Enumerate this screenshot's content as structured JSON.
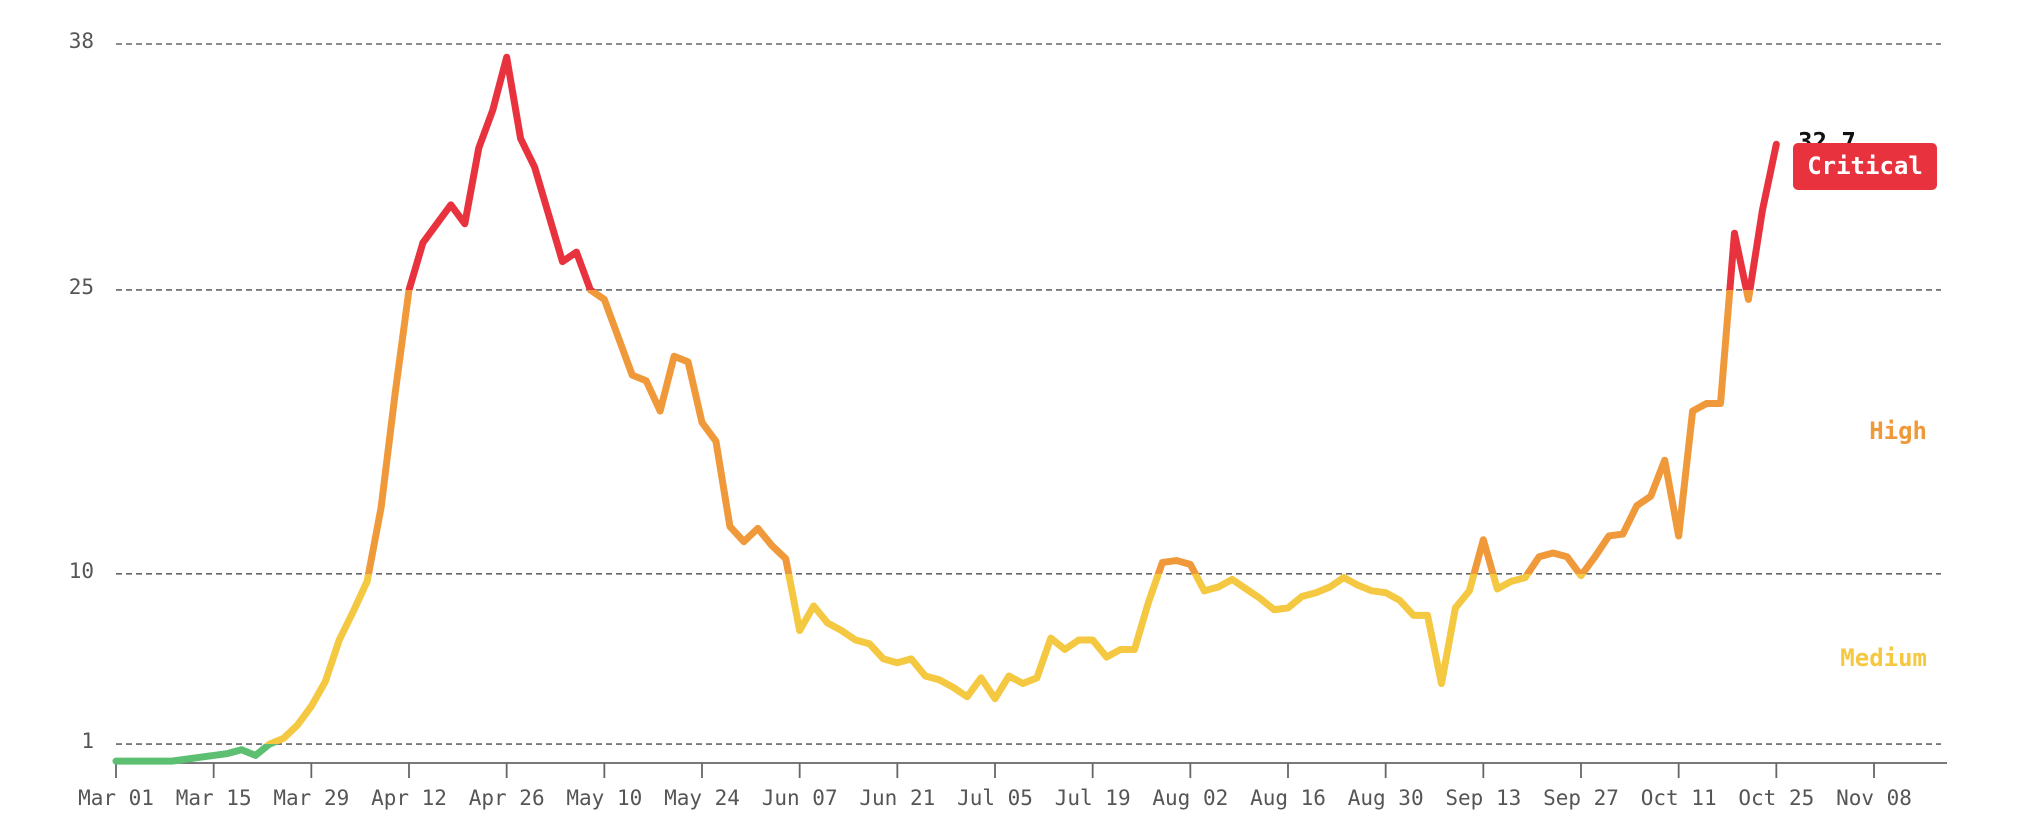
{
  "chart_data": {
    "type": "line",
    "categories": [
      "Mar 01",
      null,
      null,
      null,
      null,
      null,
      null,
      "Mar 15",
      null,
      null,
      null,
      null,
      null,
      null,
      "Mar 29",
      null,
      null,
      null,
      null,
      null,
      null,
      "Apr 12",
      null,
      null,
      null,
      null,
      null,
      null,
      "Apr 26",
      null,
      null,
      null,
      null,
      null,
      null,
      "May 10",
      null,
      null,
      null,
      null,
      null,
      null,
      "May 24",
      null,
      null,
      null,
      null,
      null,
      null,
      "Jun 07",
      null,
      null,
      null,
      null,
      null,
      null,
      "Jun 21",
      null,
      null,
      null,
      null,
      null,
      null,
      "Jul 05",
      null,
      null,
      null,
      null,
      null,
      null,
      "Jul 19",
      null,
      null,
      null,
      null,
      null,
      null,
      "Aug 02",
      null,
      null,
      null,
      null,
      null,
      null,
      "Aug 16",
      null,
      null,
      null,
      null,
      null,
      null,
      "Aug 30",
      null,
      null,
      null,
      null,
      null,
      null,
      "Sep 13",
      null,
      null,
      null,
      null,
      null,
      null,
      "Sep 27",
      null,
      null,
      null,
      null,
      null,
      null,
      "Oct 11",
      null,
      null,
      null,
      null,
      null,
      null,
      "Oct 25",
      null,
      null,
      null,
      null,
      null,
      null,
      "Nov 08"
    ],
    "values": [
      0.1,
      0.1,
      0.1,
      0.1,
      0.1,
      0.2,
      0.3,
      0.4,
      0.5,
      0.7,
      0.4,
      1.0,
      1.3,
      2.0,
      3.0,
      4.3,
      6.5,
      8.0,
      9.6,
      13.5,
      19.5,
      25.0,
      27.5,
      28.5,
      29.5,
      28.5,
      32.5,
      34.5,
      37.3,
      33.0,
      31.5,
      29.0,
      26.5,
      27.0,
      25.0,
      24.5,
      22.5,
      20.5,
      20.2,
      18.6,
      21.5,
      21.2,
      18.0,
      17.0,
      12.5,
      11.7,
      12.4,
      11.5,
      10.8,
      7.0,
      8.3,
      7.4,
      7.0,
      6.5,
      6.3,
      5.5,
      5.3,
      5.5,
      4.6,
      4.4,
      4.0,
      3.5,
      4.5,
      3.4,
      4.6,
      4.2,
      4.5,
      6.6,
      6.0,
      6.5,
      6.5,
      5.6,
      6.0,
      6.0,
      8.5,
      10.6,
      10.7,
      10.5,
      9.1,
      9.3,
      9.7,
      9.2,
      8.7,
      8.1,
      8.2,
      8.8,
      9.0,
      9.3,
      9.8,
      9.4,
      9.1,
      9.0,
      8.6,
      7.8,
      7.8,
      4.2,
      8.2,
      9.1,
      11.8,
      9.2,
      9.6,
      9.8,
      10.9,
      11.1,
      10.9,
      9.9,
      10.9,
      12.0,
      12.1,
      13.6,
      14.1,
      16.0,
      12.0,
      18.6,
      19.0,
      19.0,
      28.0,
      24.5,
      29.2,
      32.7,
      null,
      null,
      null,
      null,
      null,
      null,
      null
    ],
    "ylim": [
      0,
      38
    ],
    "yticks": [
      1,
      10,
      25,
      38
    ],
    "grid": true,
    "levels": [
      {
        "min": 0,
        "color": "#5cbf72"
      },
      {
        "name": "Medium",
        "min": 1,
        "color": "#f5c842"
      },
      {
        "name": "High",
        "min": 10,
        "color": "#f0993a"
      },
      {
        "name": "Critical",
        "min": 25,
        "color": "#e8333f"
      }
    ]
  }
}
